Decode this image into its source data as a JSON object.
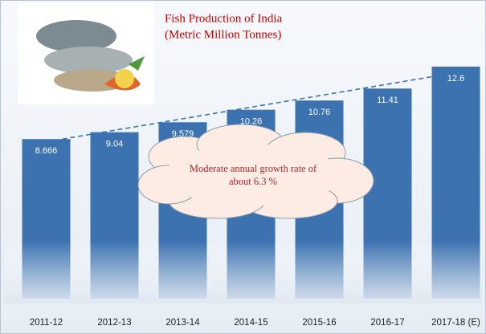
{
  "chart_data": {
    "type": "bar",
    "title": "Fish Production of India",
    "subtitle": "(Metric Million Tonnes)",
    "categories": [
      "2011-12",
      "2012-13",
      "2013-14",
      "2014-15",
      "2015-16",
      "2016-17",
      "2017-18 (E)"
    ],
    "values": [
      8.666,
      9.04,
      9.579,
      10.26,
      10.76,
      11.41,
      12.6
    ],
    "color": "#3c72b0",
    "annotation": "Moderate annual growth rate of about 6.3 %"
  }
}
